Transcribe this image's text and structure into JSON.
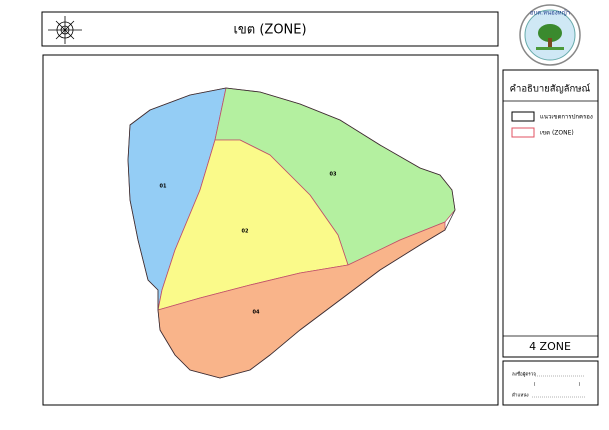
{
  "header": {
    "title": "เขต (ZONE)"
  },
  "logo": {
    "name": "อบต.หนองหญ้า"
  },
  "zones": [
    {
      "label": "01"
    },
    {
      "label": "02"
    },
    {
      "label": "03"
    },
    {
      "label": "04"
    }
  ],
  "legend": {
    "title": "คำอธิบายสัญลักษณ์",
    "items": [
      {
        "label": "แนวเขตการปกครอง"
      },
      {
        "label": "เขต (ZONE)"
      }
    ],
    "count": "4 ZONE"
  },
  "signature": {
    "inspector": "ลงชื่อผู้ตรวจ",
    "name": "(                              )",
    "position": "ตำแหน่ง"
  }
}
